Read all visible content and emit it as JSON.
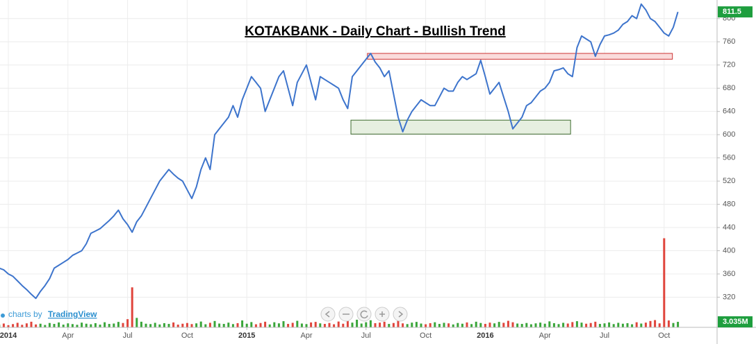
{
  "chart_data": {
    "type": "line",
    "title": "KOTAKBANK - Daily Chart - Bullish Trend",
    "attribution": {
      "prefix": "charts by",
      "link": "TradingView"
    },
    "categories": [
      null,
      null,
      "2014",
      null,
      null,
      null,
      null,
      null,
      null,
      null,
      null,
      null,
      null,
      null,
      null,
      "Apr",
      null,
      null,
      null,
      null,
      null,
      null,
      null,
      null,
      null,
      null,
      null,
      null,
      "Jul",
      null,
      null,
      null,
      null,
      null,
      null,
      null,
      null,
      null,
      null,
      null,
      null,
      "Oct",
      null,
      null,
      null,
      null,
      null,
      null,
      null,
      null,
      null,
      null,
      null,
      null,
      "2015",
      null,
      null,
      null,
      null,
      null,
      null,
      null,
      null,
      null,
      null,
      null,
      null,
      "Apr",
      null,
      null,
      null,
      null,
      null,
      null,
      null,
      null,
      null,
      null,
      null,
      null,
      "Jul",
      null,
      null,
      null,
      null,
      null,
      null,
      null,
      null,
      null,
      null,
      null,
      null,
      "Oct",
      null,
      null,
      null,
      null,
      null,
      null,
      null,
      null,
      null,
      null,
      null,
      null,
      "2016",
      null,
      null,
      null,
      null,
      null,
      null,
      null,
      null,
      null,
      null,
      null,
      null,
      "Apr",
      null,
      null,
      null,
      null,
      null,
      null,
      null,
      null,
      null,
      null,
      null,
      null,
      "Jul",
      null,
      null,
      null,
      null,
      null,
      null,
      null,
      null,
      null,
      null,
      null,
      null,
      "Oct",
      null,
      null,
      null
    ],
    "series": [
      {
        "name": "KOTAKBANK",
        "color": "#3d74cc",
        "values": [
          370,
          367,
          360,
          356,
          348,
          340,
          333,
          325,
          318,
          330,
          340,
          352,
          370,
          375,
          380,
          385,
          392,
          396,
          400,
          412,
          430,
          434,
          438,
          445,
          452,
          460,
          470,
          455,
          445,
          432,
          450,
          460,
          475,
          490,
          505,
          520,
          530,
          540,
          532,
          525,
          520,
          505,
          490,
          510,
          540,
          560,
          540,
          600,
          610,
          620,
          630,
          650,
          630,
          660,
          680,
          700,
          690,
          680,
          640,
          660,
          680,
          700,
          710,
          680,
          650,
          690,
          705,
          720,
          690,
          660,
          700,
          695,
          690,
          685,
          680,
          660,
          645,
          700,
          710,
          720,
          730,
          740,
          725,
          715,
          700,
          710,
          670,
          630,
          605,
          625,
          640,
          650,
          660,
          655,
          650,
          650,
          665,
          680,
          675,
          675,
          690,
          700,
          695,
          700,
          705,
          728,
          700,
          670,
          680,
          690,
          665,
          640,
          610,
          620,
          630,
          650,
          655,
          665,
          675,
          680,
          690,
          710,
          712,
          715,
          705,
          700,
          750,
          770,
          765,
          760,
          735,
          755,
          770,
          772,
          775,
          780,
          790,
          795,
          805,
          800,
          825,
          815,
          800,
          795,
          785,
          775,
          770,
          785,
          811.5
        ]
      },
      {
        "name": "Volume",
        "axis": "y2",
        "up_color": "#3aa63a",
        "down_color": "#e0453c",
        "values": [
          1.5,
          2.1,
          1.2,
          1.8,
          2.5,
          1.4,
          2.2,
          3.1,
          1.6,
          2.0,
          1.3,
          2.4,
          1.9,
          2.7,
          1.5,
          2.2,
          1.8,
          1.4,
          2.6,
          2.0,
          1.7,
          2.3,
          1.5,
          2.8,
          1.9,
          2.1,
          3.0,
          2.4,
          4.5,
          22,
          5.2,
          3.1,
          2.0,
          1.8,
          2.5,
          1.6,
          2.3,
          1.9,
          2.7,
          1.5,
          2.0,
          2.4,
          1.8,
          2.2,
          3.2,
          1.7,
          2.5,
          3.5,
          2.1,
          1.9,
          2.6,
          1.8,
          2.3,
          3.8,
          2.0,
          2.9,
          1.7,
          2.4,
          3.1,
          1.6,
          2.8,
          2.2,
          3.4,
          1.9,
          2.5,
          3.6,
          2.1,
          1.8,
          2.7,
          3.0,
          2.2,
          1.9,
          2.4,
          1.7,
          3.2,
          2.0,
          3.5,
          2.6,
          4.2,
          2.1,
          2.8,
          3.9,
          2.3,
          2.6,
          3.1,
          1.9,
          2.4,
          4.8,
          2.2,
          1.8,
          2.6,
          3.0,
          2.1,
          1.7,
          2.3,
          2.8,
          1.9,
          2.5,
          2.2,
          1.6,
          2.4,
          2.0,
          2.7,
          1.8,
          3.1,
          2.4,
          1.9,
          2.6,
          2.2,
          3.0,
          2.5,
          3.6,
          2.8,
          2.1,
          1.9,
          2.4,
          1.7,
          2.2,
          2.6,
          2.0,
          3.3,
          2.3,
          1.8,
          2.5,
          2.1,
          2.9,
          3.4,
          2.6,
          2.0,
          2.4,
          3.1,
          1.9,
          2.2,
          2.7,
          1.8,
          2.5,
          2.0,
          2.3,
          1.7,
          2.8,
          2.1,
          2.6,
          3.5,
          4.0,
          2.2,
          49,
          3.8,
          2.4,
          3.035
        ],
        "value_labels": [
          null,
          null,
          null,
          null,
          null,
          null,
          null,
          null,
          null,
          null,
          null,
          null,
          null,
          null,
          null,
          null,
          null,
          null,
          null,
          null,
          null,
          null,
          null,
          null,
          null,
          null,
          null,
          null,
          null,
          null,
          null,
          null,
          null,
          null,
          null,
          null,
          null,
          null,
          null,
          null,
          null,
          null,
          null,
          null,
          null,
          null,
          null,
          null,
          null,
          null,
          null,
          null,
          null,
          null,
          null,
          null,
          null,
          null,
          null,
          null,
          null,
          null,
          null,
          null,
          null,
          null,
          null,
          null,
          null,
          null,
          null,
          null,
          null,
          null,
          null,
          null,
          null,
          null,
          null,
          null,
          null,
          null,
          null,
          null,
          null,
          null,
          null,
          null,
          null,
          null,
          null,
          null,
          null,
          null,
          null,
          null,
          null,
          null,
          null,
          null,
          null,
          null,
          null,
          null,
          null,
          null,
          null,
          null,
          null,
          null,
          null,
          null,
          null,
          null,
          null,
          null,
          null,
          null,
          null,
          null,
          null,
          null,
          null,
          null,
          null,
          null,
          null,
          null,
          null,
          null,
          null,
          null,
          null,
          null,
          null,
          null,
          null,
          null,
          null,
          null,
          null,
          null,
          null,
          null,
          null,
          null,
          null,
          null,
          "3.035M"
        ]
      }
    ],
    "zones": [
      {
        "x": [
          80.3,
          146.8
        ],
        "y": [
          730,
          740
        ],
        "color": "#fadcdc",
        "border": "#cc3333"
      },
      {
        "x": [
          76.7,
          124.6
        ],
        "y": [
          601,
          625
        ],
        "color": "#e6efe0",
        "border": "#3d6b2e"
      }
    ],
    "ylim": [
      268,
      832
    ],
    "yticks": [
      320,
      360,
      400,
      440,
      480,
      520,
      560,
      600,
      640,
      680,
      720,
      760,
      800
    ],
    "y2lim": [
      0,
      180
    ],
    "grid": true,
    "badge_color": "#1e9e3e"
  }
}
